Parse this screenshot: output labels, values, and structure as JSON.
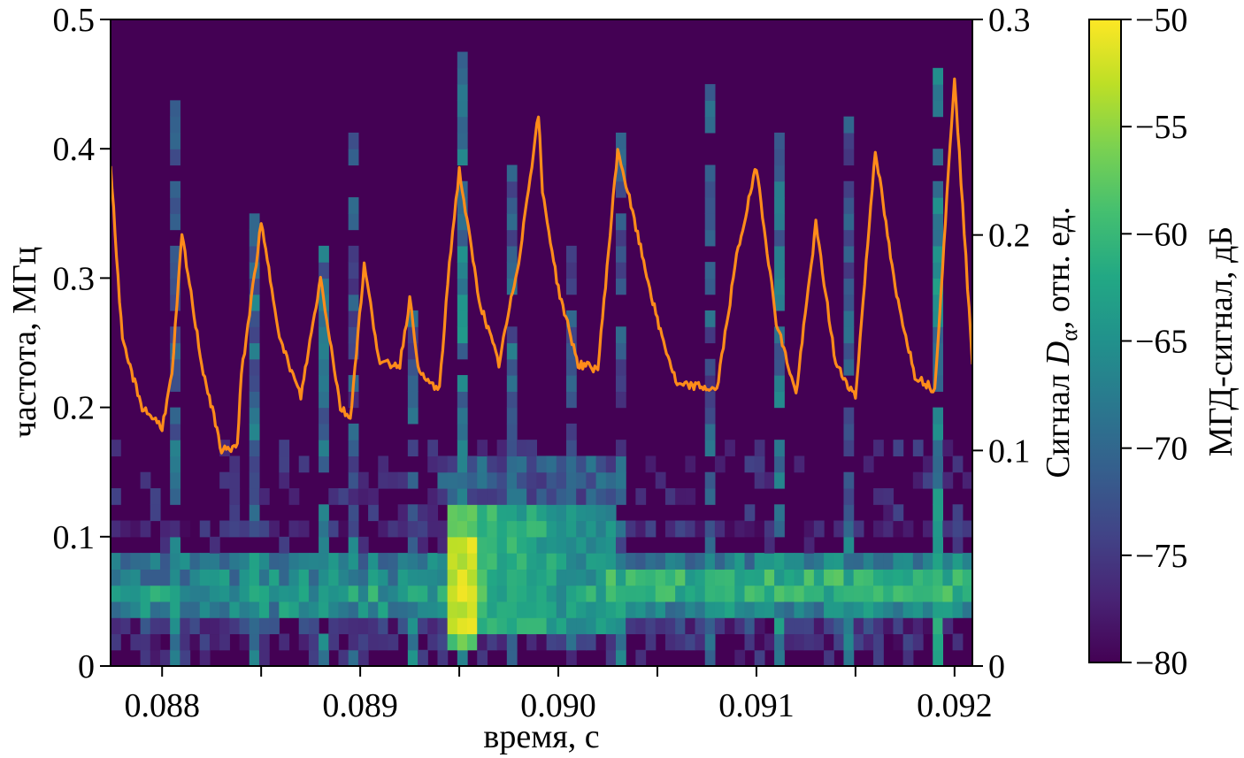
{
  "chart_data": {
    "type": "heatmap",
    "title": "",
    "xlabel": "время, с",
    "ylabel": "частота, МГц",
    "y2label_prefix": "Сигнал ",
    "y2label_symbol": "D",
    "y2label_subscript": "α",
    "y2label_suffix": ", отн. ед.",
    "colorbar_label": "МГД-сигнал, дБ",
    "xlim": [
      0.08774,
      0.09209
    ],
    "ylim": [
      0,
      0.5
    ],
    "y2lim": [
      0,
      0.3
    ],
    "clim": [
      -80,
      -50
    ],
    "x_ticks": [
      0.088,
      0.0885,
      0.089,
      0.0895,
      0.09,
      0.0905,
      0.091,
      0.0915,
      0.092
    ],
    "x_tick_labels": [
      "0.088",
      "",
      "0.089",
      "",
      "0.090",
      "",
      "0.091",
      "",
      "0.092"
    ],
    "y_ticks": [
      0,
      0.1,
      0.2,
      0.3,
      0.4,
      0.5
    ],
    "y_tick_labels": [
      "0",
      "0.1",
      "0.2",
      "0.3",
      "0.4",
      "0.5"
    ],
    "y2_ticks": [
      0,
      0.1,
      0.2,
      0.3
    ],
    "y2_tick_labels": [
      "0",
      "0.1",
      "0.2",
      "0.3"
    ],
    "cb_ticks": [
      -80,
      -75,
      -70,
      -65,
      -60,
      -55,
      -50
    ],
    "cb_tick_labels": [
      "−80",
      "−75",
      "−70",
      "−65",
      "−60",
      "−55",
      "−50"
    ],
    "heatmap": {
      "freq_bin_mhz": 0.0125,
      "time_bin_s": 5e-05,
      "background_db": -80,
      "low_band": [
        {
          "f": [
            0.0375,
            0.05
          ],
          "db": -66
        },
        {
          "f": [
            0.05,
            0.0625
          ],
          "db": -64
        },
        {
          "f": [
            0.0625,
            0.075
          ],
          "db": -67
        },
        {
          "f": [
            0.075,
            0.0875
          ],
          "db": -68
        },
        {
          "f": [
            0.025,
            0.0375
          ],
          "db": -76
        },
        {
          "f": [
            0.0125,
            0.025
          ],
          "db": -78
        },
        {
          "f": [
            0.1,
            0.1125
          ],
          "db": -78
        }
      ],
      "burst": {
        "t": [
          0.08945,
          0.0896
        ],
        "f": [
          0.0125,
          0.125
        ],
        "db": -52
      },
      "burst_tail": {
        "t": [
          0.0896,
          0.0903
        ],
        "f": [
          0.025,
          0.125
        ],
        "db": -60
      },
      "burst_high": {
        "t": [
          0.0894,
          0.09035
        ],
        "f": [
          0.125,
          0.1625
        ],
        "db": -72
      },
      "hot_band": {
        "t": [
          0.0902,
          0.09209
        ],
        "f": [
          0.05,
          0.075
        ],
        "db": -61
      },
      "vertical_streaks": [
        {
          "t": 0.08773,
          "fmax": 0.25,
          "db": -68
        },
        {
          "t": 0.08808,
          "fmax": 0.44,
          "db": -70
        },
        {
          "t": 0.08848,
          "fmax": 0.35,
          "db": -70
        },
        {
          "t": 0.0888,
          "fmax": 0.32,
          "db": -70
        },
        {
          "t": 0.08898,
          "fmax": 0.42,
          "db": -73
        },
        {
          "t": 0.08925,
          "fmax": 0.27,
          "db": -72
        },
        {
          "t": 0.0895,
          "fmax": 0.47,
          "db": -68
        },
        {
          "t": 0.08978,
          "fmax": 0.39,
          "db": -71
        },
        {
          "t": 0.09008,
          "fmax": 0.32,
          "db": -72
        },
        {
          "t": 0.09033,
          "fmax": 0.41,
          "db": -72
        },
        {
          "t": 0.09075,
          "fmax": 0.45,
          "db": -72
        },
        {
          "t": 0.09112,
          "fmax": 0.42,
          "db": -69
        },
        {
          "t": 0.09148,
          "fmax": 0.43,
          "db": -72
        },
        {
          "t": 0.0919,
          "fmax": 0.46,
          "db": -67
        }
      ]
    },
    "dalpha_line": {
      "name": "Сигнал Dα",
      "color": "#ff8c1a",
      "t": [
        0.08774,
        0.0878,
        0.0879,
        0.088,
        0.08805,
        0.0881,
        0.0882,
        0.0883,
        0.08838,
        0.0884,
        0.08845,
        0.0885,
        0.0886,
        0.0887,
        0.0888,
        0.0889,
        0.08895,
        0.08902,
        0.0891,
        0.0892,
        0.08925,
        0.0893,
        0.0894,
        0.08945,
        0.0895,
        0.0896,
        0.0897,
        0.0898,
        0.0899,
        0.08992,
        0.09,
        0.0901,
        0.0902,
        0.0903,
        0.0904,
        0.0905,
        0.0906,
        0.0907,
        0.0908,
        0.0909,
        0.091,
        0.0911,
        0.0912,
        0.0913,
        0.0914,
        0.0915,
        0.0916,
        0.0917,
        0.0918,
        0.0919,
        0.092,
        0.09209
      ],
      "y": [
        0.232,
        0.15,
        0.12,
        0.111,
        0.135,
        0.2,
        0.14,
        0.1,
        0.102,
        0.135,
        0.17,
        0.205,
        0.15,
        0.125,
        0.18,
        0.12,
        0.115,
        0.186,
        0.14,
        0.14,
        0.17,
        0.135,
        0.128,
        0.187,
        0.23,
        0.17,
        0.14,
        0.188,
        0.256,
        0.22,
        0.175,
        0.14,
        0.138,
        0.24,
        0.2,
        0.16,
        0.13,
        0.13,
        0.128,
        0.19,
        0.232,
        0.16,
        0.126,
        0.205,
        0.14,
        0.125,
        0.24,
        0.175,
        0.135,
        0.128,
        0.274,
        0.14
      ]
    }
  }
}
